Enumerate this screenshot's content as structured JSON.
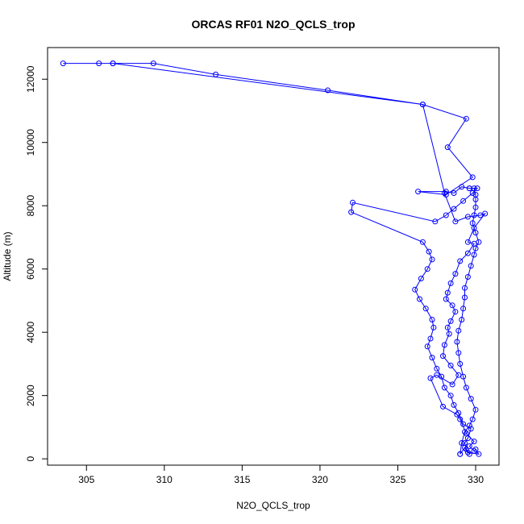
{
  "chart_data": {
    "type": "line",
    "title": "ORCAS RF01 N2O_QCLS_trop",
    "xlabel": "N2O_QCLS_trop",
    "ylabel": "Altitude (m)",
    "xlim": [
      302.5,
      331.5
    ],
    "ylim": [
      -200,
      13000
    ],
    "xticks": [
      305,
      310,
      315,
      320,
      325,
      330
    ],
    "yticks": [
      0,
      2000,
      4000,
      6000,
      8000,
      10000,
      12000
    ],
    "grid": false,
    "color": "#0000ff",
    "series": [
      {
        "points": [
          [
            329.6,
            150
          ],
          [
            329.4,
            300
          ],
          [
            329.3,
            500
          ],
          [
            329.5,
            650
          ],
          [
            329.7,
            950
          ],
          [
            329.2,
            1100
          ],
          [
            328.9,
            1450
          ],
          [
            328.6,
            1700
          ],
          [
            328.4,
            2000
          ],
          [
            328.0,
            2250
          ],
          [
            327.8,
            2600
          ],
          [
            327.5,
            2850
          ],
          [
            327.2,
            3200
          ],
          [
            326.9,
            3550
          ],
          [
            327.1,
            3800
          ],
          [
            327.3,
            4150
          ],
          [
            327.2,
            4400
          ],
          [
            326.8,
            4750
          ],
          [
            326.4,
            5050
          ],
          [
            326.1,
            5350
          ],
          [
            326.5,
            5700
          ],
          [
            326.9,
            6000
          ],
          [
            327.2,
            6300
          ],
          [
            327.0,
            6550
          ],
          [
            326.6,
            6850
          ],
          [
            322.0,
            7800
          ],
          [
            322.1,
            8100
          ],
          [
            327.4,
            7500
          ],
          [
            328.1,
            7700
          ],
          [
            328.6,
            7900
          ],
          [
            329.2,
            8150
          ],
          [
            329.8,
            8400
          ],
          [
            330.1,
            8550
          ],
          [
            329.6,
            8550
          ],
          [
            329.1,
            8600
          ],
          [
            328.6,
            8400
          ],
          [
            328.1,
            8450
          ],
          [
            326.3,
            8450
          ],
          [
            328.1,
            8350
          ],
          [
            329.8,
            8900
          ],
          [
            328.2,
            9850
          ],
          [
            329.4,
            10750
          ],
          [
            326.6,
            11200
          ],
          [
            320.5,
            11650
          ],
          [
            313.3,
            12150
          ],
          [
            309.3,
            12500
          ],
          [
            306.7,
            12500
          ],
          [
            305.8,
            12500
          ],
          [
            303.5,
            12500
          ],
          [
            306.7,
            12500
          ],
          [
            326.6,
            11200
          ],
          [
            328.0,
            8400
          ],
          [
            328.7,
            7500
          ],
          [
            329.5,
            7650
          ],
          [
            330.3,
            7700
          ],
          [
            330.6,
            7750
          ],
          [
            329.9,
            7300
          ],
          [
            329.5,
            6850
          ],
          [
            329.9,
            6800
          ],
          [
            329.5,
            6500
          ],
          [
            329.0,
            6250
          ],
          [
            328.7,
            5850
          ],
          [
            328.4,
            5550
          ],
          [
            328.2,
            5250
          ],
          [
            328.1,
            5050
          ],
          [
            328.5,
            4850
          ],
          [
            328.7,
            4650
          ],
          [
            328.4,
            4350
          ],
          [
            328.2,
            4150
          ],
          [
            328.3,
            3950
          ],
          [
            328.0,
            3600
          ],
          [
            327.9,
            3250
          ],
          [
            328.4,
            2950
          ],
          [
            328.9,
            2650
          ],
          [
            328.5,
            2350
          ],
          [
            327.5,
            2650
          ],
          [
            327.1,
            2550
          ],
          [
            327.9,
            1650
          ],
          [
            328.8,
            1400
          ],
          [
            329.0,
            1250
          ],
          [
            329.4,
            800
          ],
          [
            329.9,
            550
          ],
          [
            329.6,
            400
          ],
          [
            329.9,
            250
          ],
          [
            330.0,
            300
          ],
          [
            330.2,
            150
          ],
          [
            329.5,
            200
          ],
          [
            329.3,
            350
          ],
          [
            329.0,
            150
          ]
        ]
      },
      {
        "points": [
          [
            329.0,
            150
          ],
          [
            329.1,
            500
          ],
          [
            329.3,
            850
          ],
          [
            329.6,
            1050
          ],
          [
            329.8,
            1250
          ],
          [
            330.0,
            1550
          ],
          [
            329.7,
            1900
          ],
          [
            329.4,
            2250
          ],
          [
            329.2,
            2600
          ],
          [
            329.0,
            3000
          ],
          [
            328.9,
            3350
          ],
          [
            328.8,
            3700
          ],
          [
            328.9,
            4050
          ],
          [
            329.1,
            4400
          ],
          [
            329.2,
            4750
          ],
          [
            329.3,
            5100
          ],
          [
            329.3,
            5400
          ],
          [
            329.5,
            5750
          ],
          [
            329.7,
            6100
          ],
          [
            329.9,
            6450
          ],
          [
            330.0,
            6650
          ],
          [
            330.2,
            6850
          ],
          [
            330.0,
            7150
          ],
          [
            329.8,
            7450
          ],
          [
            329.9,
            7700
          ],
          [
            330.0,
            7950
          ],
          [
            330.0,
            8200
          ],
          [
            330.0,
            8350
          ],
          [
            329.9,
            8550
          ],
          [
            329.6,
            8550
          ]
        ]
      }
    ]
  }
}
